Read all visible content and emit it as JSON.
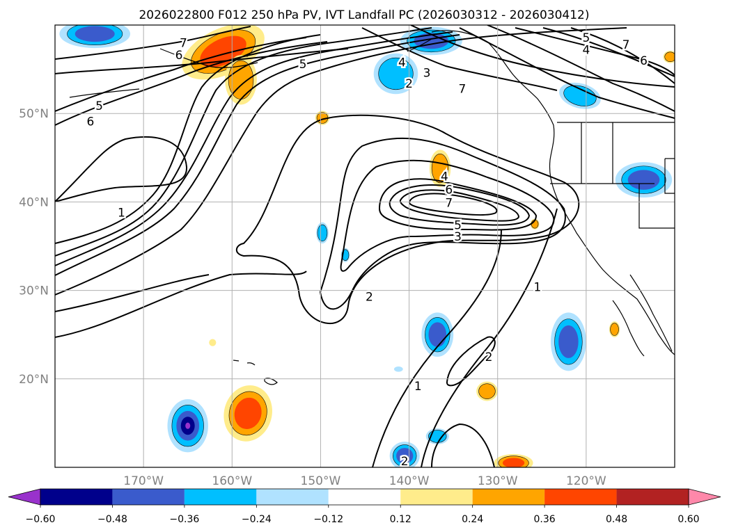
{
  "chart_data": {
    "type": "contour-map",
    "title": "2026022800 F012 250 hPa PV, IVT Landfall PC (2026030312 - 2026030412)",
    "projection": "plate-carree",
    "extent": {
      "lon": [
        -180,
        -110
      ],
      "lat": [
        10,
        60
      ]
    },
    "xticks": [
      {
        "lon": -170,
        "label": "170°W"
      },
      {
        "lon": -160,
        "label": "160°W"
      },
      {
        "lon": -150,
        "label": "150°W"
      },
      {
        "lon": -140,
        "label": "140°W"
      },
      {
        "lon": -130,
        "label": "130°W"
      },
      {
        "lon": -120,
        "label": "120°W"
      }
    ],
    "yticks": [
      {
        "lat": 20,
        "label": "20°N"
      },
      {
        "lat": 30,
        "label": "30°N"
      },
      {
        "lat": 40,
        "label": "40°N"
      },
      {
        "lat": 50,
        "label": "50°N"
      }
    ],
    "grid": true,
    "colors": {
      "lt_neg_0.60": "#9932cc",
      "-0.60_-0.48": "#00008b",
      "-0.48_-0.36": "#3a5bcc",
      "-0.36_-0.24": "#00bfff",
      "-0.24_-0.12": "#b0e2ff",
      "-0.12_0.12": "#ffffff",
      "0.12_0.24": "#ffec8b",
      "0.24_0.36": "#ffa500",
      "0.36_0.48": "#ff4500",
      "0.48_0.60": "#b22222",
      "gt_0.60": "#ff88aa",
      "tick_label": "#808080",
      "grid": "#b0b0b0"
    },
    "colorbar": {
      "boundaries": [
        -0.6,
        -0.48,
        -0.36,
        -0.24,
        -0.12,
        0.12,
        0.24,
        0.36,
        0.48,
        0.6
      ],
      "labels": [
        "−0.60",
        "−0.48",
        "−0.36",
        "−0.24",
        "−0.12",
        "0.12",
        "0.24",
        "0.36",
        "0.48",
        "0.60"
      ],
      "extend": "both"
    },
    "contour_labels": [
      {
        "text": "1",
        "lon": -172.5,
        "lat": 38.8
      },
      {
        "text": "5",
        "lon": -175,
        "lat": 50.9
      },
      {
        "text": "6",
        "lon": -176,
        "lat": 49.1
      },
      {
        "text": "7",
        "lon": -165.5,
        "lat": 58
      },
      {
        "text": "6",
        "lon": -166,
        "lat": 56.6
      },
      {
        "text": "5",
        "lon": -152,
        "lat": 55.6
      },
      {
        "text": "4",
        "lon": -140.8,
        "lat": 55.8
      },
      {
        "text": "3",
        "lon": -138,
        "lat": 54.6
      },
      {
        "text": "2",
        "lon": -140,
        "lat": 53.4
      },
      {
        "text": "7",
        "lon": -134,
        "lat": 52.8
      },
      {
        "text": "5",
        "lon": -120,
        "lat": 58.6
      },
      {
        "text": "4",
        "lon": -120,
        "lat": 57.2
      },
      {
        "text": "7",
        "lon": -115.5,
        "lat": 57.8
      },
      {
        "text": "6",
        "lon": -113.5,
        "lat": 56
      },
      {
        "text": "4",
        "lon": -136,
        "lat": 42.9
      },
      {
        "text": "6",
        "lon": -135.5,
        "lat": 41.4
      },
      {
        "text": "7",
        "lon": -135.5,
        "lat": 39.9
      },
      {
        "text": "5",
        "lon": -134.5,
        "lat": 37.4
      },
      {
        "text": "3",
        "lon": -134.5,
        "lat": 36.1
      },
      {
        "text": "2",
        "lon": -144.5,
        "lat": 29.3
      },
      {
        "text": "1",
        "lon": -125.5,
        "lat": 30.4
      },
      {
        "text": "2",
        "lon": -131,
        "lat": 22.5
      },
      {
        "text": "1",
        "lon": -139,
        "lat": 19.2
      },
      {
        "text": "2",
        "lon": -140.5,
        "lat": 10.7
      }
    ],
    "pc_blobs": [
      {
        "lon": -175.5,
        "lat": 59,
        "rx": 4,
        "ry": 1.6,
        "rot": 0,
        "sign": -1,
        "level": 3
      },
      {
        "lon": -161,
        "lat": 57,
        "rx": 5,
        "ry": 2.6,
        "rot": -25,
        "sign": 1,
        "level": 3
      },
      {
        "lon": -159,
        "lat": 53.8,
        "rx": 1.8,
        "ry": 2.8,
        "rot": 0,
        "sign": 1,
        "level": 2
      },
      {
        "lon": -137.5,
        "lat": 58.2,
        "rx": 3.5,
        "ry": 1.6,
        "rot": 0,
        "sign": -1,
        "level": 3
      },
      {
        "lon": -141.5,
        "lat": 54.5,
        "rx": 2.5,
        "ry": 2.3,
        "rot": 0,
        "sign": -1,
        "level": 2
      },
      {
        "lon": -120.7,
        "lat": 52,
        "rx": 2.4,
        "ry": 1.4,
        "rot": 15,
        "sign": -1,
        "level": 2
      },
      {
        "lon": -149.8,
        "lat": 49.5,
        "rx": 0.8,
        "ry": 0.8,
        "rot": 0,
        "sign": 1,
        "level": 2
      },
      {
        "lon": -110.5,
        "lat": 56.4,
        "rx": 0.8,
        "ry": 0.7,
        "rot": 0,
        "sign": 1,
        "level": 2
      },
      {
        "lon": -113.5,
        "lat": 42.5,
        "rx": 3.2,
        "ry": 2.0,
        "rot": 0,
        "sign": -1,
        "level": 3
      },
      {
        "lon": -136.5,
        "lat": 43.8,
        "rx": 1.2,
        "ry": 2.1,
        "rot": 0,
        "sign": 1,
        "level": 2
      },
      {
        "lon": -125.8,
        "lat": 37.5,
        "rx": 0.5,
        "ry": 0.6,
        "rot": 0,
        "sign": 1,
        "level": 2
      },
      {
        "lon": -149.8,
        "lat": 36.5,
        "rx": 0.7,
        "ry": 1.2,
        "rot": 0,
        "sign": -1,
        "level": 2
      },
      {
        "lon": -147.2,
        "lat": 34,
        "rx": 0.5,
        "ry": 0.8,
        "rot": 0,
        "sign": -1,
        "level": 2
      },
      {
        "lon": -136.8,
        "lat": 25,
        "rx": 1.8,
        "ry": 2.5,
        "rot": 0,
        "sign": -1,
        "level": 3
      },
      {
        "lon": -122,
        "lat": 24.2,
        "rx": 2.0,
        "ry": 3.3,
        "rot": 0,
        "sign": -1,
        "level": 3
      },
      {
        "lon": -116.8,
        "lat": 25.6,
        "rx": 0.6,
        "ry": 0.9,
        "rot": 0,
        "sign": 1,
        "level": 2
      },
      {
        "lon": -162.2,
        "lat": 24.1,
        "rx": 0.4,
        "ry": 0.4,
        "rot": 0,
        "sign": 1,
        "level": 1
      },
      {
        "lon": -141.2,
        "lat": 21.1,
        "rx": 0.5,
        "ry": 0.3,
        "rot": 0,
        "sign": -1,
        "level": 1
      },
      {
        "lon": -165,
        "lat": 14.7,
        "rx": 2.3,
        "ry": 3.0,
        "rot": 0,
        "sign": -1,
        "level": 5
      },
      {
        "lon": -158.2,
        "lat": 16.1,
        "rx": 2.7,
        "ry": 3.2,
        "rot": 15,
        "sign": 1,
        "level": 3
      },
      {
        "lon": -131.2,
        "lat": 18.6,
        "rx": 1.2,
        "ry": 1.1,
        "rot": 0,
        "sign": 1,
        "level": 2
      },
      {
        "lon": -136.8,
        "lat": 13.5,
        "rx": 1.3,
        "ry": 0.9,
        "rot": 0,
        "sign": -1,
        "level": 2
      },
      {
        "lon": -140.5,
        "lat": 11.3,
        "rx": 1.7,
        "ry": 1.6,
        "rot": 0,
        "sign": -1,
        "level": 3
      },
      {
        "lon": -128.2,
        "lat": 10.5,
        "rx": 2.2,
        "ry": 1.0,
        "rot": 0,
        "sign": 1,
        "level": 3
      }
    ]
  }
}
